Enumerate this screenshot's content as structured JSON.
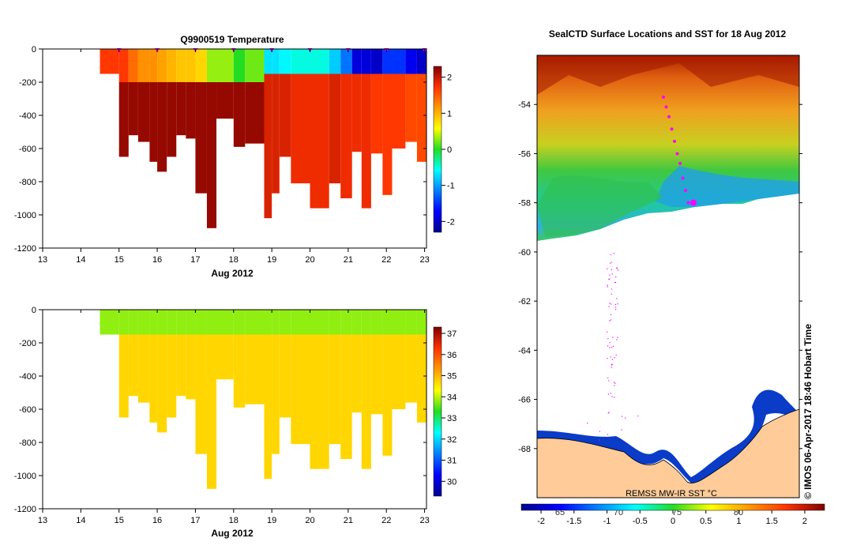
{
  "chart_data": [
    {
      "type": "heatmap",
      "id": "temperature",
      "title": "Q9900519  Temperature",
      "xlabel": "Aug 2012",
      "ylabel": "",
      "xlim": [
        13,
        23.05
      ],
      "ylim": [
        -1200,
        0
      ],
      "x_ticks": [
        "13",
        "14",
        "15",
        "16",
        "17",
        "18",
        "19",
        "20",
        "21",
        "22",
        "23"
      ],
      "y_ticks": [
        "0",
        "-200",
        "-400",
        "-600",
        "-800",
        "-1000",
        "-1200"
      ],
      "colorbar": {
        "min": -2.3,
        "max": 2.3,
        "ticks": [
          "2",
          "1",
          "0",
          "-1",
          "-2"
        ],
        "label": ""
      },
      "profile_markers_x": [
        15,
        16,
        17,
        18,
        19,
        20,
        21,
        22,
        23
      ],
      "surface_zone_values": [
        1.7,
        1.4,
        1.2,
        1.1,
        1.0,
        0.9,
        0.8,
        0.3,
        0.0,
        0.2,
        -0.7,
        -0.6,
        -0.5,
        -0.8,
        -1.2,
        -1.9,
        -2.0,
        -1.5,
        -1.8,
        -2.0
      ],
      "deep_zone_values": [
        2.2,
        2.2,
        2.2,
        2.2,
        2.2,
        2.2,
        2.2,
        2.2,
        2.2,
        2.2,
        1.9,
        1.9,
        1.8,
        1.9,
        1.8,
        1.8,
        1.7,
        1.7,
        1.6,
        1.6
      ],
      "profiles": [
        {
          "t0": 14.5,
          "t1": 15.0,
          "maxdepth": 150
        },
        {
          "t0": 15.0,
          "t1": 15.25,
          "maxdepth": 650
        },
        {
          "t0": 15.25,
          "t1": 15.5,
          "maxdepth": 520
        },
        {
          "t0": 15.5,
          "t1": 15.8,
          "maxdepth": 560
        },
        {
          "t0": 15.8,
          "t1": 16.0,
          "maxdepth": 680
        },
        {
          "t0": 16.0,
          "t1": 16.25,
          "maxdepth": 740
        },
        {
          "t0": 16.25,
          "t1": 16.5,
          "maxdepth": 650
        },
        {
          "t0": 16.5,
          "t1": 16.75,
          "maxdepth": 520
        },
        {
          "t0": 16.75,
          "t1": 17.0,
          "maxdepth": 540
        },
        {
          "t0": 17.0,
          "t1": 17.3,
          "maxdepth": 870
        },
        {
          "t0": 17.3,
          "t1": 17.55,
          "maxdepth": 1080
        },
        {
          "t0": 17.55,
          "t1": 18.0,
          "maxdepth": 420
        },
        {
          "t0": 18.0,
          "t1": 18.3,
          "maxdepth": 590
        },
        {
          "t0": 18.3,
          "t1": 18.8,
          "maxdepth": 570
        },
        {
          "t0": 18.8,
          "t1": 19.0,
          "maxdepth": 1020
        },
        {
          "t0": 19.0,
          "t1": 19.2,
          "maxdepth": 870
        },
        {
          "t0": 19.2,
          "t1": 19.5,
          "maxdepth": 650
        },
        {
          "t0": 19.5,
          "t1": 20.0,
          "maxdepth": 810
        },
        {
          "t0": 20.0,
          "t1": 20.5,
          "maxdepth": 960
        },
        {
          "t0": 20.5,
          "t1": 20.8,
          "maxdepth": 810
        },
        {
          "t0": 20.8,
          "t1": 21.1,
          "maxdepth": 900
        },
        {
          "t0": 21.1,
          "t1": 21.35,
          "maxdepth": 620
        },
        {
          "t0": 21.35,
          "t1": 21.6,
          "maxdepth": 960
        },
        {
          "t0": 21.6,
          "t1": 21.9,
          "maxdepth": 630
        },
        {
          "t0": 21.9,
          "t1": 22.15,
          "maxdepth": 880
        },
        {
          "t0": 22.15,
          "t1": 22.5,
          "maxdepth": 600
        },
        {
          "t0": 22.5,
          "t1": 22.8,
          "maxdepth": 560
        },
        {
          "t0": 22.8,
          "t1": 23.05,
          "maxdepth": 680
        }
      ]
    },
    {
      "type": "heatmap",
      "id": "salinity",
      "title": "",
      "xlabel": "Aug 2012",
      "ylabel": "",
      "xlim": [
        13,
        23.05
      ],
      "ylim": [
        -1200,
        0
      ],
      "x_ticks": [
        "13",
        "14",
        "15",
        "16",
        "17",
        "18",
        "19",
        "20",
        "21",
        "22",
        "23"
      ],
      "y_ticks": [
        "0",
        "-200",
        "-400",
        "-600",
        "-800",
        "-1000",
        "-1200"
      ],
      "colorbar": {
        "min": 29.3,
        "max": 37.3,
        "ticks": [
          "37",
          "36",
          "35",
          "34",
          "33",
          "32",
          "31",
          "30"
        ],
        "label": ""
      },
      "surface_value": 33.8,
      "deep_value": 34.7
    },
    {
      "type": "heatmap",
      "id": "sst_map",
      "title": "SealCTD Surface Locations and SST for 18 Aug 2012",
      "xlabel": "",
      "ylabel": "",
      "ylim": [
        -70,
        -52
      ],
      "y_ticks": [
        "-54",
        "-56",
        "-58",
        "-60",
        "-62",
        "-64",
        "-66",
        "-68"
      ],
      "x_ticks": [
        "65",
        "70",
        "75",
        "80"
      ],
      "colorbar": {
        "min": -2.3,
        "max": 2.3,
        "ticks": [
          "-2",
          "-1.5",
          "-1",
          "-0.5",
          "0",
          "0.5",
          "1",
          "1.5",
          "2"
        ],
        "label": "REMSS MW-IR SST °C"
      },
      "track_latitudes": [
        -53.7,
        -54.1,
        -54.5,
        -55.0,
        -55.5,
        -56.0,
        -56.4,
        -57.0,
        -57.5,
        -58.0
      ],
      "current_position_lat": -58.0,
      "credit": "© IMOS 06-Apr-2017 18:46 Hobart Time"
    }
  ],
  "colors": {
    "land": "#ffcc99",
    "marker": "#ff00ff"
  }
}
